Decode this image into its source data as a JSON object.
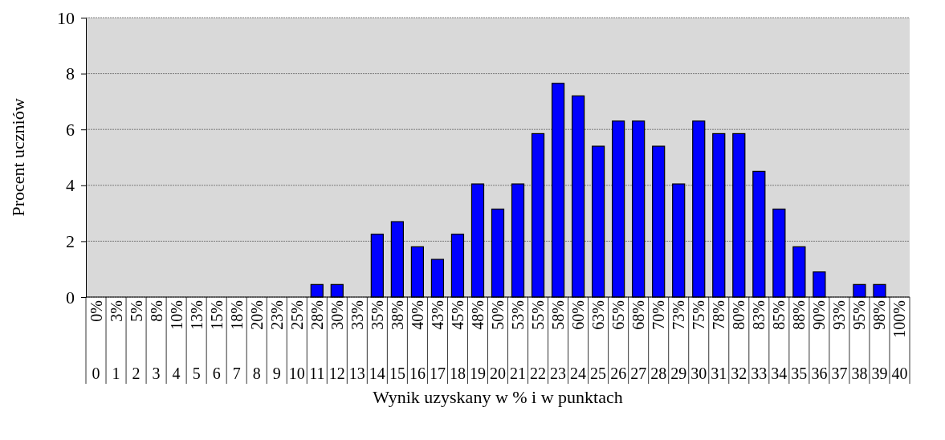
{
  "chart_data": {
    "type": "bar",
    "xlabel": "Wynik uzyskany w % i w punktach",
    "ylabel": "Procent uczniów",
    "categories": [
      "0%\n0",
      "3%\n1",
      "5%\n2",
      "8%\n3",
      "10%\n4",
      "13%\n5",
      "15%\n6",
      "18%\n7",
      "20%\n8",
      "23%\n9",
      "25%\n10",
      "28%\n11",
      "30%\n12",
      "33%\n13",
      "35%\n14",
      "38%\n15",
      "40%\n16",
      "43%\n17",
      "45%\n18",
      "48%\n19",
      "50%\n20",
      "53%\n21",
      "55%\n22",
      "58%\n23",
      "60%\n24",
      "63%\n25",
      "65%\n26",
      "68%\n27",
      "70%\n28",
      "73%\n29",
      "75%\n30",
      "78%\n31",
      "80%\n32",
      "83%\n33",
      "85%\n34",
      "88%\n35",
      "90%\n36",
      "93%\n37",
      "95%\n38",
      "98%\n39",
      "100%\n40"
    ],
    "values": [
      0,
      0,
      0,
      0,
      0,
      0,
      0,
      0,
      0,
      0,
      0,
      0.45,
      0.45,
      0,
      2.25,
      2.7,
      1.8,
      1.35,
      2.25,
      4.05,
      3.15,
      4.05,
      5.85,
      7.65,
      7.2,
      5.4,
      6.3,
      6.3,
      5.4,
      4.05,
      6.3,
      5.85,
      5.85,
      4.5,
      3.15,
      1.8,
      0.9,
      0,
      0.45,
      0.45,
      0
    ],
    "color": "#0000ff",
    "ylim": [
      0,
      10
    ],
    "yticks": [
      0,
      2,
      4,
      6,
      8,
      10
    ],
    "grid": "y"
  }
}
